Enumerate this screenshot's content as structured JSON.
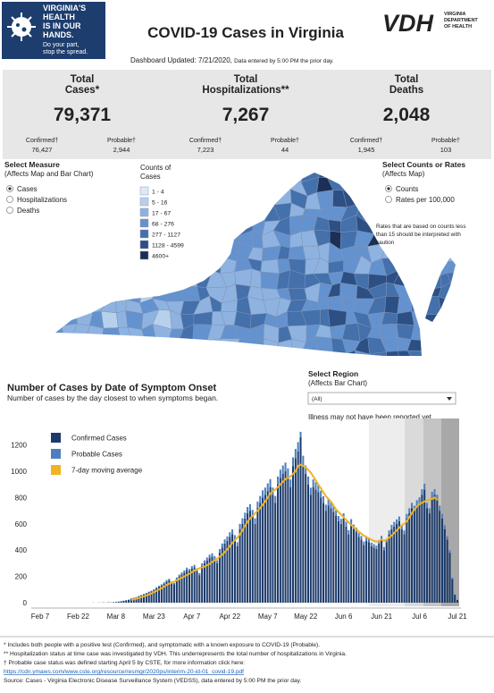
{
  "badge": {
    "lines": [
      "VIRGINIA'S",
      "HEALTH",
      "IS IN OUR",
      "HANDS."
    ],
    "tagline": [
      "Do your part,",
      "stop the spread."
    ]
  },
  "header": {
    "title": "COVID-19 Cases in Virginia",
    "logo": "VDH",
    "logo_text": [
      "VIRGINIA",
      "DEPARTMENT",
      "OF HEALTH"
    ]
  },
  "updated": {
    "text": "Dashboard Updated: 7/21/2020,",
    "note": "Data entered by 5:00 PM the prior day."
  },
  "kpis": [
    {
      "title": [
        "Total",
        "Cases*"
      ],
      "value": "79,371",
      "breakdown": [
        {
          "label": "Confirmed†",
          "value": "76,427"
        },
        {
          "label": "Probable†",
          "value": "2,944"
        }
      ]
    },
    {
      "title": [
        "Total",
        "Hospitalizations**"
      ],
      "value": "7,267",
      "breakdown": [
        {
          "label": "Confirmed†",
          "value": "7,223"
        },
        {
          "label": "Probable†",
          "value": "44"
        }
      ]
    },
    {
      "title": [
        "Total",
        "Deaths"
      ],
      "value": "2,048",
      "breakdown": [
        {
          "label": "Confirmed†",
          "value": "1,945"
        },
        {
          "label": "Probable†",
          "value": "103"
        }
      ]
    }
  ],
  "measure": {
    "label": "Select Measure",
    "sublabel": "(Affects Map and Bar Chart)",
    "options": [
      "Cases",
      "Hospitalizations",
      "Deaths"
    ]
  },
  "map_legend": {
    "title": [
      "Counts of",
      "Cases"
    ],
    "bins": [
      "1 - 4",
      "5 - 16",
      "17 - 67",
      "68 - 276",
      "277 - 1127",
      "1128 - 4599",
      "4600+"
    ],
    "colors": [
      "#dce9f6",
      "#b7d0ec",
      "#8fb3e0",
      "#6492cf",
      "#4470ac",
      "#2c4f84",
      "#1b2f57"
    ]
  },
  "rates": {
    "label": "Select Counts or Rates",
    "sublabel": "(Affects Map)",
    "options": [
      "Counts",
      "Rates per 100,000"
    ],
    "note": [
      "Rates that are based on counts less",
      "than 15 should be interpreted with",
      "caution"
    ]
  },
  "region": {
    "label": "Select Region",
    "sublabel": "(Affects Bar Chart)",
    "value": "(All)",
    "note": "Illness may not have been reported yet."
  },
  "chart_data": {
    "type": "bar",
    "stacked": true,
    "title": "Number of Cases by Date of Symptom Onset",
    "subtitle": "Number of cases by the day closest to when symptoms began.",
    "categories": [
      "Feb 7",
      null,
      null,
      null,
      null,
      null,
      null,
      null,
      null,
      null,
      null,
      null,
      null,
      null,
      null,
      "Feb 22",
      null,
      null,
      null,
      null,
      null,
      null,
      null,
      null,
      null,
      null,
      null,
      null,
      null,
      null,
      "Mar 8",
      null,
      null,
      null,
      null,
      null,
      null,
      null,
      null,
      null,
      null,
      null,
      null,
      null,
      null,
      "Mar 23",
      null,
      null,
      null,
      null,
      null,
      null,
      null,
      null,
      null,
      null,
      null,
      null,
      null,
      null,
      "Apr 7",
      null,
      null,
      null,
      null,
      null,
      null,
      null,
      null,
      null,
      null,
      null,
      null,
      null,
      null,
      "Apr 22",
      null,
      null,
      null,
      null,
      null,
      null,
      null,
      null,
      null,
      null,
      null,
      null,
      null,
      null,
      "May 7",
      null,
      null,
      null,
      null,
      null,
      null,
      null,
      null,
      null,
      null,
      null,
      null,
      null,
      null,
      "May 22",
      null,
      null,
      null,
      null,
      null,
      null,
      null,
      null,
      null,
      null,
      null,
      null,
      null,
      null,
      "Jun 6",
      null,
      null,
      null,
      null,
      null,
      null,
      null,
      null,
      null,
      null,
      null,
      null,
      null,
      null,
      "Jun 21",
      null,
      null,
      null,
      null,
      null,
      null,
      null,
      null,
      null,
      null,
      null,
      null,
      null,
      null,
      "Jul 6",
      null,
      null,
      null,
      null,
      null,
      null,
      null,
      null,
      null,
      null,
      null,
      null,
      null,
      null,
      "Jul 21"
    ],
    "series": [
      {
        "name": "Confirmed Cases",
        "color": "#1c3a6b",
        "values": [
          0,
          0,
          0,
          0,
          0,
          0,
          0,
          0,
          0,
          0,
          0,
          0,
          0,
          0,
          0,
          0,
          0,
          0,
          0,
          0,
          0,
          1,
          0,
          1,
          1,
          2,
          1,
          3,
          2,
          4,
          5,
          8,
          10,
          14,
          18,
          22,
          30,
          35,
          40,
          48,
          55,
          62,
          70,
          78,
          85,
          95,
          110,
          120,
          130,
          145,
          160,
          170,
          150,
          140,
          180,
          200,
          215,
          230,
          250,
          240,
          260,
          270,
          240,
          210,
          280,
          300,
          320,
          340,
          350,
          330,
          300,
          380,
          420,
          450,
          470,
          500,
          520,
          480,
          430,
          560,
          600,
          640,
          680,
          700,
          660,
          600,
          720,
          760,
          800,
          820,
          850,
          880,
          820,
          760,
          900,
          950,
          980,
          1000,
          960,
          880,
          1040,
          1100,
          1150,
          1260,
          1050,
          980,
          900,
          820,
          880,
          860,
          840,
          800,
          760,
          700,
          740,
          720,
          690,
          660,
          620,
          600,
          640,
          580,
          520,
          600,
          560,
          540,
          500,
          480,
          440,
          470,
          460,
          430,
          420,
          410,
          450,
          480,
          400,
          460,
          520,
          560,
          580,
          600,
          620,
          560,
          520,
          640,
          680,
          720,
          700,
          740,
          760,
          820,
          860,
          720,
          680,
          800,
          820,
          780,
          700,
          640,
          560,
          480,
          380,
          180,
          60,
          20
        ]
      },
      {
        "name": "Probable Cases",
        "color": "#4d7fbf",
        "values": [
          0,
          0,
          0,
          0,
          0,
          0,
          0,
          0,
          0,
          0,
          0,
          0,
          0,
          0,
          0,
          0,
          0,
          0,
          0,
          0,
          0,
          0,
          0,
          0,
          0,
          0,
          0,
          0,
          0,
          0,
          0,
          0,
          1,
          1,
          1,
          2,
          2,
          3,
          3,
          4,
          4,
          5,
          5,
          6,
          6,
          8,
          8,
          9,
          10,
          10,
          12,
          12,
          11,
          10,
          12,
          14,
          15,
          16,
          17,
          16,
          18,
          18,
          16,
          15,
          20,
          22,
          24,
          25,
          26,
          24,
          22,
          28,
          30,
          32,
          34,
          36,
          38,
          34,
          30,
          40,
          42,
          45,
          48,
          50,
          46,
          42,
          50,
          52,
          55,
          56,
          58,
          60,
          56,
          52,
          60,
          62,
          64,
          66,
          62,
          58,
          66,
          70,
          72,
          40,
          68,
          64,
          60,
          55,
          58,
          56,
          54,
          52,
          50,
          46,
          48,
          46,
          44,
          42,
          40,
          38,
          40,
          36,
          32,
          36,
          34,
          32,
          30,
          28,
          26,
          28,
          27,
          26,
          25,
          24,
          26,
          28,
          24,
          26,
          30,
          32,
          34,
          34,
          36,
          32,
          30,
          36,
          38,
          40,
          38,
          40,
          42,
          44,
          46,
          40,
          38,
          44,
          44,
          42,
          38,
          36,
          30,
          26,
          20,
          10,
          4,
          2
        ]
      },
      {
        "name": "7-day moving average",
        "color": "#f0b323",
        "type": "line",
        "values": [
          null,
          null,
          null,
          null,
          null,
          null,
          null,
          null,
          null,
          null,
          null,
          null,
          null,
          null,
          null,
          null,
          null,
          null,
          null,
          null,
          null,
          null,
          null,
          null,
          null,
          null,
          null,
          null,
          null,
          null,
          null,
          null,
          null,
          null,
          null,
          null,
          20,
          25,
          30,
          36,
          42,
          48,
          55,
          62,
          70,
          80,
          90,
          100,
          110,
          122,
          135,
          145,
          152,
          160,
          170,
          180,
          190,
          200,
          210,
          220,
          232,
          245,
          255,
          262,
          268,
          275,
          285,
          295,
          310,
          322,
          335,
          350,
          365,
          385,
          405,
          430,
          455,
          475,
          495,
          520,
          550,
          585,
          615,
          640,
          660,
          680,
          700,
          720,
          745,
          770,
          800,
          830,
          850,
          860,
          880,
          900,
          920,
          940,
          950,
          960,
          980,
          1000,
          1040,
          1050,
          1040,
          1030,
          1010,
          990,
          960,
          930,
          900,
          870,
          840,
          810,
          790,
          770,
          740,
          710,
          690,
          670,
          650,
          630,
          610,
          590,
          575,
          560,
          540,
          525,
          510,
          500,
          490,
          480,
          470,
          465,
          470,
          480,
          470,
          480,
          495,
          510,
          530,
          550,
          570,
          590,
          600,
          620,
          650,
          680,
          710,
          730,
          750,
          760,
          770,
          780,
          785,
          790,
          800,
          780,
          null,
          null,
          null,
          null,
          null,
          null,
          null,
          null
        ]
      }
    ],
    "ylim": [
      0,
      1320
    ],
    "yticks": [
      0,
      200,
      400,
      600,
      800,
      1000,
      1200
    ],
    "grid": false
  },
  "footnotes": {
    "lines": [
      "* Includes both people with a positive test (Confirmed), and symptomatic with a known exposure to COVID-19 (Probable).",
      "** Hospitalization status at time case was investigated by VDH. This underrepresents the total number of hospitalizations in Virginia.",
      "† Probable case status was defined starting April 5 by CSTE, for more information click here:"
    ],
    "link": "https://cdn.ymaws.com/www.cste.org/resource/resmgr/2020ps/interim-20-id-01_covid-19.pdf",
    "source": "Source:  Cases - Virginia Electronic Disease Surveillance System (VEDSS), data entered by 5:00 PM the prior day."
  }
}
